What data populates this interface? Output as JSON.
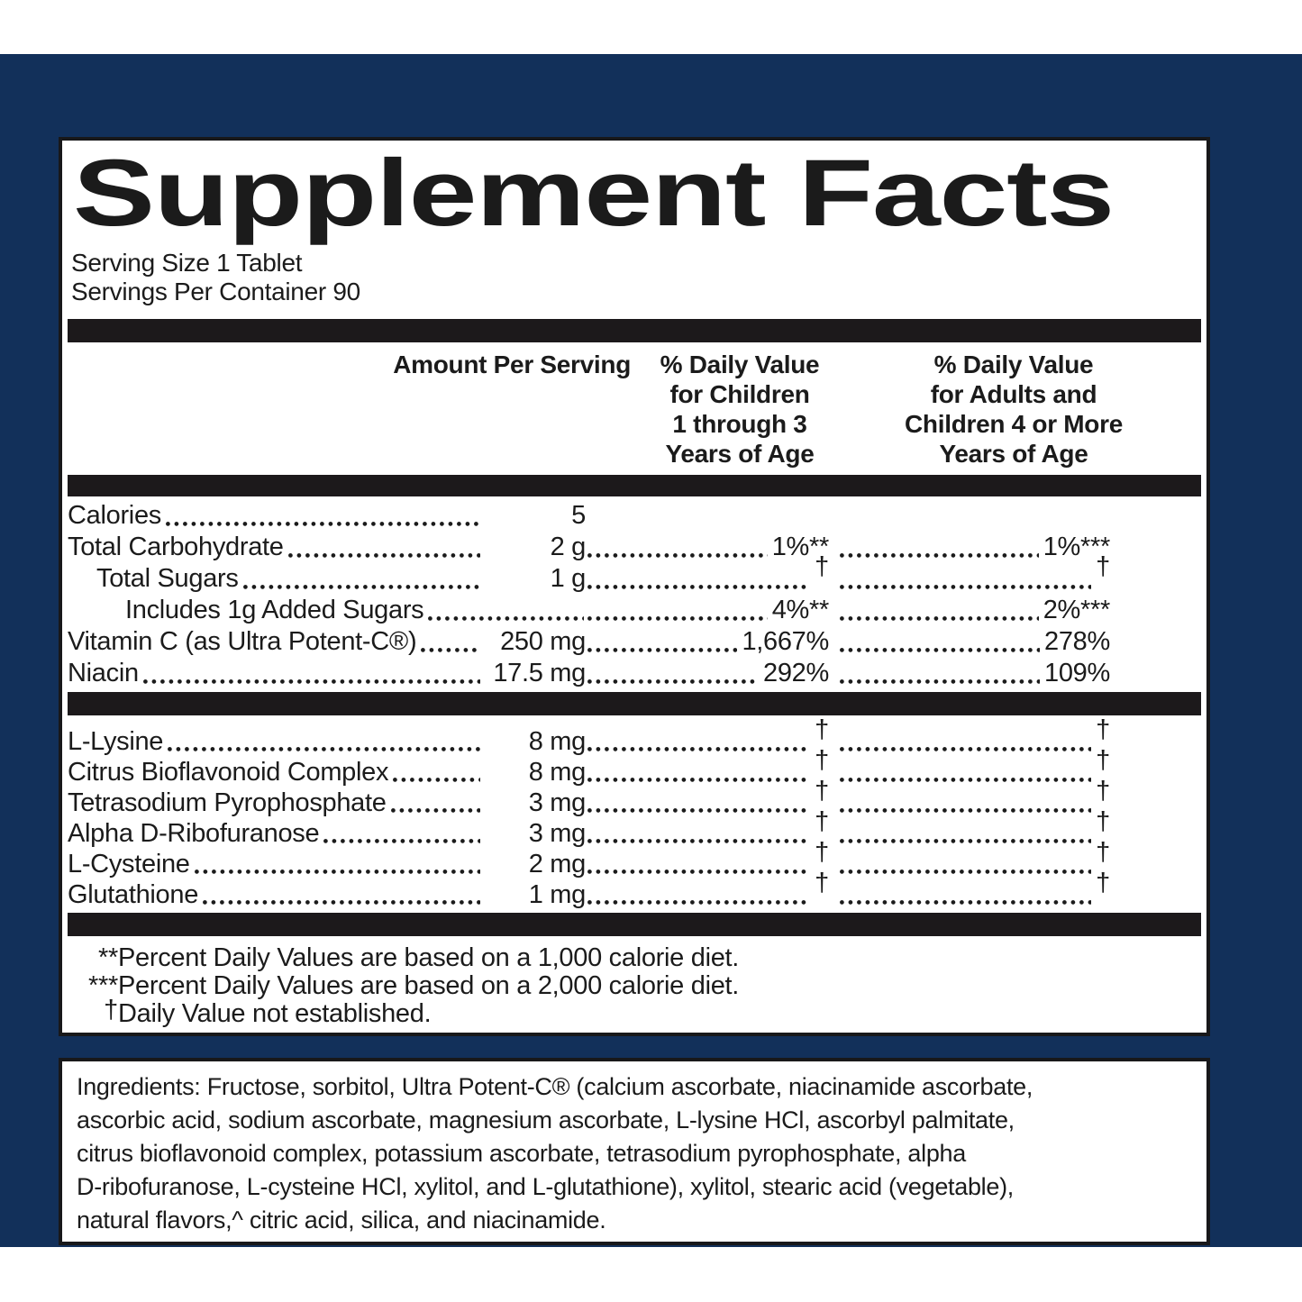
{
  "colors": {
    "navy": "#12305a",
    "ink": "#1b1b1b"
  },
  "supplement_facts": {
    "title": "Supplement Facts",
    "serving_size": "Serving Size 1 Tablet",
    "servings_per_container": "Servings Per Container 90",
    "columns": {
      "amount": "Amount Per Serving",
      "children": [
        "% Daily Value",
        "for Children",
        "1 through 3",
        "Years of Age"
      ],
      "adults": [
        "% Daily Value",
        "for Adults and",
        "Children 4 or More",
        "Years of Age"
      ]
    },
    "section1": [
      {
        "name": "Calories",
        "indent": 0,
        "amount": "5",
        "children": "",
        "adults": ""
      },
      {
        "name": "Total Carbohydrate",
        "indent": 0,
        "amount": "2 g",
        "children": "1%**",
        "adults": "1%***"
      },
      {
        "name": "Total Sugars",
        "indent": 1,
        "amount": "1 g",
        "children": "†",
        "adults": "†"
      },
      {
        "name": "Includes 1g Added Sugars",
        "indent": 2,
        "amount": "",
        "children": "4%**",
        "adults": "2%***"
      },
      {
        "name": "Vitamin C (as Ultra Potent-C®)",
        "indent": 0,
        "amount": "250 mg",
        "children": "1,667%",
        "adults": "278%"
      },
      {
        "name": "Niacin",
        "indent": 0,
        "amount": "17.5 mg",
        "children": "292%",
        "adults": "109%"
      }
    ],
    "section2": [
      {
        "name": "L-Lysine",
        "indent": 0,
        "amount": "8 mg",
        "children": "†",
        "adults": "†"
      },
      {
        "name": "Citrus Bioflavonoid Complex",
        "indent": 0,
        "amount": "8 mg",
        "children": "†",
        "adults": "†"
      },
      {
        "name": "Tetrasodium Pyrophosphate",
        "indent": 0,
        "amount": "3 mg",
        "children": "†",
        "adults": "†"
      },
      {
        "name": "Alpha D-Ribofuranose",
        "indent": 0,
        "amount": "3 mg",
        "children": "†",
        "adults": "†"
      },
      {
        "name": "L-Cysteine",
        "indent": 0,
        "amount": "2 mg",
        "children": "†",
        "adults": "†"
      },
      {
        "name": "Glutathione",
        "indent": 0,
        "amount": "1 mg",
        "children": "†",
        "adults": "†"
      }
    ],
    "footnotes": [
      {
        "marker": "**",
        "text": "Percent Daily Values are based on a 1,000 calorie diet."
      },
      {
        "marker": "***",
        "text": "Percent Daily Values are based on a 2,000 calorie diet."
      },
      {
        "marker": "†",
        "text": "Daily Value not established."
      }
    ]
  },
  "ingredients": {
    "lines": [
      "Ingredients: Fructose, sorbitol, Ultra Potent-C® (calcium ascorbate, niacinamide ascorbate,",
      "ascorbic acid, sodium ascorbate, magnesium ascorbate, L-lysine HCl, ascorbyl palmitate,",
      "citrus bioflavonoid complex, potassium ascorbate, tetrasodium pyrophosphate, alpha",
      "D-ribofuranose, L-cysteine HCl, xylitol, and L-glutathione), xylitol, stearic acid (vegetable),",
      "natural flavors,^ citric acid, silica, and niacinamide."
    ]
  }
}
